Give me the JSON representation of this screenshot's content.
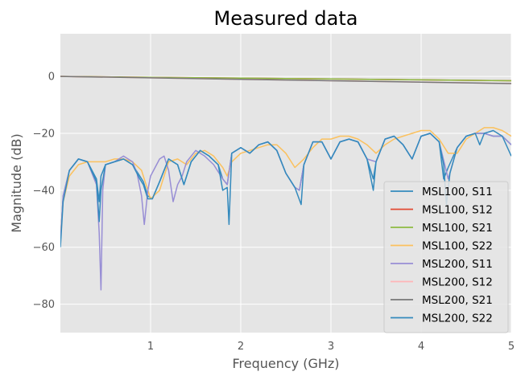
{
  "chart_data": {
    "type": "line",
    "title": "Measured data",
    "xlabel": "Frequency (GHz)",
    "ylabel": "Magnitude (dB)",
    "xlim": [
      0.0,
      5.0
    ],
    "ylim": [
      -90,
      15
    ],
    "xticks": [
      1,
      2,
      3,
      4,
      5
    ],
    "yticks": [
      0,
      -20,
      -40,
      -60,
      -80
    ],
    "grid": true,
    "legend_position": "lower-right",
    "style": {
      "background": "#e5e5e5",
      "grid_color": "#ffffff"
    },
    "series": [
      {
        "name": "MSL100, S11",
        "color": "#348abd",
        "x": [
          0.0,
          0.03,
          0.1,
          0.2,
          0.3,
          0.4,
          0.43,
          0.45,
          0.5,
          0.6,
          0.7,
          0.8,
          0.88,
          0.92,
          0.97,
          1.02,
          1.1,
          1.2,
          1.3,
          1.37,
          1.45,
          1.55,
          1.65,
          1.75,
          1.8,
          1.85,
          1.9,
          2.0,
          2.1,
          2.2,
          2.3,
          2.4,
          2.5,
          2.6,
          2.65,
          2.7,
          2.8,
          2.9,
          3.0,
          3.1,
          3.2,
          3.3,
          3.4,
          3.47,
          3.5,
          3.6,
          3.7,
          3.8,
          3.9,
          4.0,
          4.1,
          4.2,
          4.25,
          4.3,
          4.4,
          4.5,
          4.6,
          4.7,
          4.8,
          4.9,
          5.0
        ],
        "y": [
          -58,
          -42,
          -33,
          -29,
          -30,
          -36,
          -44,
          -35,
          -31,
          -30,
          -29,
          -31,
          -35,
          -37,
          -42,
          -43,
          -37,
          -29,
          -31,
          -38,
          -30,
          -26,
          -28,
          -31,
          -36,
          -38,
          -27,
          -25,
          -27,
          -24,
          -23,
          -26,
          -34,
          -39,
          -40,
          -31,
          -23,
          -23,
          -29,
          -23,
          -22,
          -23,
          -29,
          -36,
          -30,
          -22,
          -21,
          -24,
          -29,
          -21,
          -20,
          -23,
          -36,
          -32,
          -25,
          -21,
          -20,
          -20,
          -21,
          -21,
          -24
        ]
      },
      {
        "name": "MSL100, S12",
        "color": "#e24a33",
        "x": [
          0.0,
          1.0,
          2.0,
          3.0,
          4.0,
          5.0
        ],
        "y": [
          0,
          -0.3,
          -0.6,
          -0.9,
          -1.2,
          -1.5
        ]
      },
      {
        "name": "MSL100, S21",
        "color": "#8eba42",
        "x": [
          0.0,
          1.0,
          2.0,
          3.0,
          4.0,
          5.0
        ],
        "y": [
          0,
          -0.3,
          -0.6,
          -0.9,
          -1.2,
          -1.5
        ]
      },
      {
        "name": "MSL100, S22",
        "color": "#fbc15e",
        "x": [
          0.0,
          0.03,
          0.1,
          0.2,
          0.3,
          0.4,
          0.5,
          0.6,
          0.7,
          0.8,
          0.9,
          0.95,
          1.0,
          1.1,
          1.2,
          1.3,
          1.4,
          1.5,
          1.6,
          1.7,
          1.8,
          1.85,
          1.9,
          2.0,
          2.1,
          2.2,
          2.3,
          2.4,
          2.5,
          2.6,
          2.7,
          2.8,
          2.9,
          3.0,
          3.1,
          3.2,
          3.3,
          3.4,
          3.5,
          3.6,
          3.7,
          3.8,
          3.9,
          4.0,
          4.1,
          4.2,
          4.3,
          4.4,
          4.5,
          4.6,
          4.7,
          4.8,
          4.9,
          5.0
        ],
        "y": [
          -56,
          -44,
          -35,
          -31,
          -30,
          -30,
          -30,
          -29,
          -29,
          -30,
          -33,
          -38,
          -43,
          -40,
          -30,
          -29,
          -31,
          -27,
          -26,
          -28,
          -32,
          -35,
          -30,
          -27,
          -26,
          -25,
          -24,
          -24,
          -27,
          -32,
          -29,
          -25,
          -22,
          -22,
          -21,
          -21,
          -22,
          -24,
          -27,
          -24,
          -22,
          -21,
          -20,
          -19,
          -19,
          -22,
          -27,
          -27,
          -22,
          -20,
          -18,
          -18,
          -19,
          -21
        ]
      },
      {
        "name": "MSL200, S11",
        "color": "#988ed5",
        "x": [
          0.0,
          0.03,
          0.1,
          0.2,
          0.3,
          0.4,
          0.43,
          0.45,
          0.47,
          0.5,
          0.6,
          0.7,
          0.8,
          0.85,
          0.9,
          0.93,
          0.97,
          1.0,
          1.05,
          1.1,
          1.15,
          1.2,
          1.25,
          1.3,
          1.35,
          1.4,
          1.5,
          1.6,
          1.7,
          1.8,
          1.85,
          1.9,
          2.0,
          2.1,
          2.2,
          2.3,
          2.4,
          2.5,
          2.6,
          2.65,
          2.7,
          2.8,
          2.9,
          3.0,
          3.1,
          3.2,
          3.3,
          3.4,
          3.5,
          3.6,
          3.7,
          3.8,
          3.9,
          4.0,
          4.1,
          4.2,
          4.3,
          4.4,
          4.5,
          4.6,
          4.7,
          4.8,
          4.9,
          5.0
        ],
        "y": [
          -58,
          -42,
          -33,
          -29,
          -30,
          -38,
          -55,
          -75,
          -40,
          -31,
          -30,
          -28,
          -30,
          -34,
          -42,
          -52,
          -40,
          -35,
          -32,
          -29,
          -28,
          -33,
          -44,
          -38,
          -35,
          -30,
          -26,
          -28,
          -31,
          -36,
          -38,
          -27,
          -25,
          -27,
          -24,
          -23,
          -26,
          -34,
          -39,
          -40,
          -31,
          -23,
          -23,
          -29,
          -23,
          -22,
          -23,
          -29,
          -30,
          -22,
          -21,
          -24,
          -29,
          -21,
          -20,
          -23,
          -36,
          -25,
          -21,
          -20,
          -20,
          -21,
          -21,
          -24
        ]
      },
      {
        "name": "MSL200, S12",
        "color": "#ffb5b8",
        "x": [
          0.0,
          1.0,
          2.0,
          3.0,
          4.0,
          5.0
        ],
        "y": [
          0,
          -0.5,
          -1.0,
          -1.5,
          -2.0,
          -2.5
        ]
      },
      {
        "name": "MSL200, S21",
        "color": "#777777",
        "x": [
          0.0,
          1.0,
          2.0,
          3.0,
          4.0,
          5.0
        ],
        "y": [
          0,
          -0.5,
          -1.0,
          -1.5,
          -2.0,
          -2.5
        ]
      },
      {
        "name": "MSL200, S22",
        "color": "#348abd",
        "x": [
          0.0,
          0.03,
          0.1,
          0.2,
          0.3,
          0.4,
          0.43,
          0.45,
          0.5,
          0.6,
          0.7,
          0.8,
          0.88,
          0.92,
          0.97,
          1.02,
          1.1,
          1.2,
          1.3,
          1.37,
          1.45,
          1.55,
          1.65,
          1.75,
          1.8,
          1.85,
          1.87,
          1.9,
          2.0,
          2.1,
          2.2,
          2.3,
          2.4,
          2.5,
          2.6,
          2.67,
          2.7,
          2.8,
          2.9,
          3.0,
          3.1,
          3.2,
          3.3,
          3.4,
          3.47,
          3.5,
          3.6,
          3.7,
          3.8,
          3.9,
          4.0,
          4.1,
          4.2,
          4.25,
          4.28,
          4.32,
          4.4,
          4.5,
          4.6,
          4.65,
          4.7,
          4.8,
          4.9,
          5.0
        ],
        "y": [
          -60,
          -44,
          -33,
          -29,
          -30,
          -37,
          -51,
          -40,
          -31,
          -30,
          -29,
          -31,
          -36,
          -38,
          -43,
          -43,
          -37,
          -29,
          -31,
          -38,
          -30,
          -26,
          -28,
          -31,
          -40,
          -39,
          -52,
          -27,
          -25,
          -27,
          -24,
          -23,
          -26,
          -34,
          -39,
          -45,
          -31,
          -23,
          -23,
          -29,
          -23,
          -22,
          -23,
          -29,
          -40,
          -30,
          -22,
          -21,
          -24,
          -29,
          -21,
          -20,
          -23,
          -31,
          -45,
          -34,
          -25,
          -21,
          -20,
          -24,
          -20,
          -19,
          -21,
          -28
        ]
      }
    ]
  }
}
